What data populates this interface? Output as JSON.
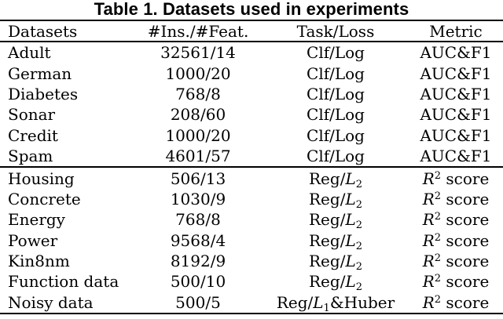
{
  "title": "Table 1. Datasets used in experiments",
  "table": {
    "columns": {
      "datasets": "Datasets",
      "ins_feat": "#Ins./#Feat.",
      "task_loss": "Task/Loss",
      "metric": "Metric"
    },
    "rows": [
      {
        "dataset": "Adult",
        "ins_feat": "32561/14",
        "task": {
          "pre": "Clf/Log"
        },
        "metric": {
          "text": "AUC&F1"
        }
      },
      {
        "dataset": "German",
        "ins_feat": "1000/20",
        "task": {
          "pre": "Clf/Log"
        },
        "metric": {
          "text": "AUC&F1"
        }
      },
      {
        "dataset": "Diabetes",
        "ins_feat": "768/8",
        "task": {
          "pre": "Clf/Log"
        },
        "metric": {
          "text": "AUC&F1"
        }
      },
      {
        "dataset": "Sonar",
        "ins_feat": "208/60",
        "task": {
          "pre": "Clf/Log"
        },
        "metric": {
          "text": "AUC&F1"
        }
      },
      {
        "dataset": "Credit",
        "ins_feat": "1000/20",
        "task": {
          "pre": "Clf/Log"
        },
        "metric": {
          "text": "AUC&F1"
        }
      },
      {
        "dataset": "Spam",
        "ins_feat": "4601/57",
        "task": {
          "pre": "Clf/Log"
        },
        "metric": {
          "text": "AUC&F1"
        }
      },
      {
        "dataset": "Housing",
        "ins_feat": "506/13",
        "task": {
          "pre": "Reg/",
          "it": "L",
          "sub": "2"
        },
        "metric": {
          "it": "R",
          "sup": "2",
          "post": " score"
        }
      },
      {
        "dataset": "Concrete",
        "ins_feat": "1030/9",
        "task": {
          "pre": "Reg/",
          "it": "L",
          "sub": "2"
        },
        "metric": {
          "it": "R",
          "sup": "2",
          "post": " score"
        }
      },
      {
        "dataset": "Energy",
        "ins_feat": "768/8",
        "task": {
          "pre": "Reg/",
          "it": "L",
          "sub": "2"
        },
        "metric": {
          "it": "R",
          "sup": "2",
          "post": " score"
        }
      },
      {
        "dataset": "Power",
        "ins_feat": "9568/4",
        "task": {
          "pre": "Reg/",
          "it": "L",
          "sub": "2"
        },
        "metric": {
          "it": "R",
          "sup": "2",
          "post": " score"
        }
      },
      {
        "dataset": "Kin8nm",
        "ins_feat": "8192/9",
        "task": {
          "pre": "Reg/",
          "it": "L",
          "sub": "2"
        },
        "metric": {
          "it": "R",
          "sup": "2",
          "post": " score"
        }
      },
      {
        "dataset": "Function data",
        "ins_feat": "500/10",
        "task": {
          "pre": "Reg/",
          "it": "L",
          "sub": "2"
        },
        "metric": {
          "it": "R",
          "sup": "2",
          "post": " score"
        }
      },
      {
        "dataset": "Noisy data",
        "ins_feat": "500/5",
        "task": {
          "pre": "Reg/",
          "it": "L",
          "sub": "1",
          "post": "&Huber"
        },
        "metric": {
          "it": "R",
          "sup": "2",
          "post": " score"
        }
      }
    ]
  },
  "colors": {
    "text": "#000000",
    "background": "#ffffff",
    "rule": "#000000"
  }
}
